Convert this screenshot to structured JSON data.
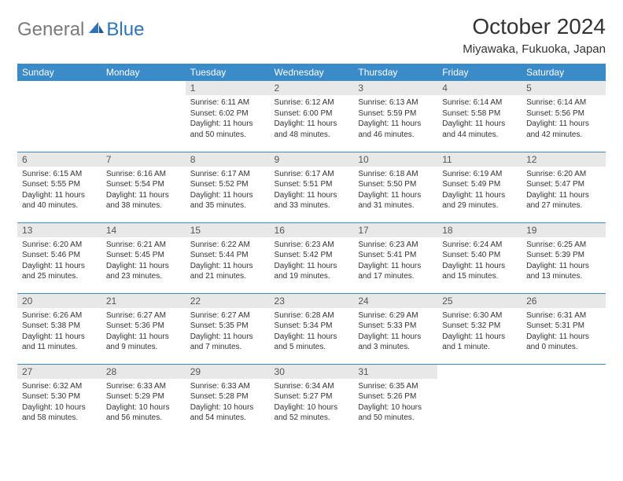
{
  "logo": {
    "general": "General",
    "blue": "Blue"
  },
  "title": "October 2024",
  "location": "Miyawaka, Fukuoka, Japan",
  "colors": {
    "header_bg": "#3b8bc9",
    "header_fg": "#ffffff",
    "daynum_bg": "#e8e8e8",
    "border": "#3b8bc9",
    "logo_gray": "#7a7a7a",
    "logo_blue": "#2e75b6"
  },
  "weekdays": [
    "Sunday",
    "Monday",
    "Tuesday",
    "Wednesday",
    "Thursday",
    "Friday",
    "Saturday"
  ],
  "weeks": [
    [
      null,
      null,
      {
        "n": "1",
        "sr": "Sunrise: 6:11 AM",
        "ss": "Sunset: 6:02 PM",
        "dl": "Daylight: 11 hours and 50 minutes."
      },
      {
        "n": "2",
        "sr": "Sunrise: 6:12 AM",
        "ss": "Sunset: 6:00 PM",
        "dl": "Daylight: 11 hours and 48 minutes."
      },
      {
        "n": "3",
        "sr": "Sunrise: 6:13 AM",
        "ss": "Sunset: 5:59 PM",
        "dl": "Daylight: 11 hours and 46 minutes."
      },
      {
        "n": "4",
        "sr": "Sunrise: 6:14 AM",
        "ss": "Sunset: 5:58 PM",
        "dl": "Daylight: 11 hours and 44 minutes."
      },
      {
        "n": "5",
        "sr": "Sunrise: 6:14 AM",
        "ss": "Sunset: 5:56 PM",
        "dl": "Daylight: 11 hours and 42 minutes."
      }
    ],
    [
      {
        "n": "6",
        "sr": "Sunrise: 6:15 AM",
        "ss": "Sunset: 5:55 PM",
        "dl": "Daylight: 11 hours and 40 minutes."
      },
      {
        "n": "7",
        "sr": "Sunrise: 6:16 AM",
        "ss": "Sunset: 5:54 PM",
        "dl": "Daylight: 11 hours and 38 minutes."
      },
      {
        "n": "8",
        "sr": "Sunrise: 6:17 AM",
        "ss": "Sunset: 5:52 PM",
        "dl": "Daylight: 11 hours and 35 minutes."
      },
      {
        "n": "9",
        "sr": "Sunrise: 6:17 AM",
        "ss": "Sunset: 5:51 PM",
        "dl": "Daylight: 11 hours and 33 minutes."
      },
      {
        "n": "10",
        "sr": "Sunrise: 6:18 AM",
        "ss": "Sunset: 5:50 PM",
        "dl": "Daylight: 11 hours and 31 minutes."
      },
      {
        "n": "11",
        "sr": "Sunrise: 6:19 AM",
        "ss": "Sunset: 5:49 PM",
        "dl": "Daylight: 11 hours and 29 minutes."
      },
      {
        "n": "12",
        "sr": "Sunrise: 6:20 AM",
        "ss": "Sunset: 5:47 PM",
        "dl": "Daylight: 11 hours and 27 minutes."
      }
    ],
    [
      {
        "n": "13",
        "sr": "Sunrise: 6:20 AM",
        "ss": "Sunset: 5:46 PM",
        "dl": "Daylight: 11 hours and 25 minutes."
      },
      {
        "n": "14",
        "sr": "Sunrise: 6:21 AM",
        "ss": "Sunset: 5:45 PM",
        "dl": "Daylight: 11 hours and 23 minutes."
      },
      {
        "n": "15",
        "sr": "Sunrise: 6:22 AM",
        "ss": "Sunset: 5:44 PM",
        "dl": "Daylight: 11 hours and 21 minutes."
      },
      {
        "n": "16",
        "sr": "Sunrise: 6:23 AM",
        "ss": "Sunset: 5:42 PM",
        "dl": "Daylight: 11 hours and 19 minutes."
      },
      {
        "n": "17",
        "sr": "Sunrise: 6:23 AM",
        "ss": "Sunset: 5:41 PM",
        "dl": "Daylight: 11 hours and 17 minutes."
      },
      {
        "n": "18",
        "sr": "Sunrise: 6:24 AM",
        "ss": "Sunset: 5:40 PM",
        "dl": "Daylight: 11 hours and 15 minutes."
      },
      {
        "n": "19",
        "sr": "Sunrise: 6:25 AM",
        "ss": "Sunset: 5:39 PM",
        "dl": "Daylight: 11 hours and 13 minutes."
      }
    ],
    [
      {
        "n": "20",
        "sr": "Sunrise: 6:26 AM",
        "ss": "Sunset: 5:38 PM",
        "dl": "Daylight: 11 hours and 11 minutes."
      },
      {
        "n": "21",
        "sr": "Sunrise: 6:27 AM",
        "ss": "Sunset: 5:36 PM",
        "dl": "Daylight: 11 hours and 9 minutes."
      },
      {
        "n": "22",
        "sr": "Sunrise: 6:27 AM",
        "ss": "Sunset: 5:35 PM",
        "dl": "Daylight: 11 hours and 7 minutes."
      },
      {
        "n": "23",
        "sr": "Sunrise: 6:28 AM",
        "ss": "Sunset: 5:34 PM",
        "dl": "Daylight: 11 hours and 5 minutes."
      },
      {
        "n": "24",
        "sr": "Sunrise: 6:29 AM",
        "ss": "Sunset: 5:33 PM",
        "dl": "Daylight: 11 hours and 3 minutes."
      },
      {
        "n": "25",
        "sr": "Sunrise: 6:30 AM",
        "ss": "Sunset: 5:32 PM",
        "dl": "Daylight: 11 hours and 1 minute."
      },
      {
        "n": "26",
        "sr": "Sunrise: 6:31 AM",
        "ss": "Sunset: 5:31 PM",
        "dl": "Daylight: 11 hours and 0 minutes."
      }
    ],
    [
      {
        "n": "27",
        "sr": "Sunrise: 6:32 AM",
        "ss": "Sunset: 5:30 PM",
        "dl": "Daylight: 10 hours and 58 minutes."
      },
      {
        "n": "28",
        "sr": "Sunrise: 6:33 AM",
        "ss": "Sunset: 5:29 PM",
        "dl": "Daylight: 10 hours and 56 minutes."
      },
      {
        "n": "29",
        "sr": "Sunrise: 6:33 AM",
        "ss": "Sunset: 5:28 PM",
        "dl": "Daylight: 10 hours and 54 minutes."
      },
      {
        "n": "30",
        "sr": "Sunrise: 6:34 AM",
        "ss": "Sunset: 5:27 PM",
        "dl": "Daylight: 10 hours and 52 minutes."
      },
      {
        "n": "31",
        "sr": "Sunrise: 6:35 AM",
        "ss": "Sunset: 5:26 PM",
        "dl": "Daylight: 10 hours and 50 minutes."
      },
      null,
      null
    ]
  ]
}
